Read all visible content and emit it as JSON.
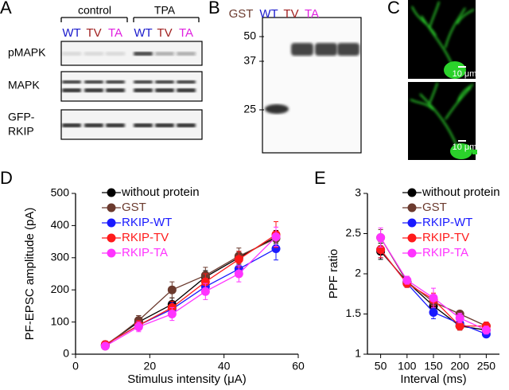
{
  "panel_a": {
    "label": "A",
    "groups": [
      "control",
      "TPA"
    ],
    "lanes": [
      "WT",
      "TV",
      "TA",
      "WT",
      "TV",
      "TA"
    ],
    "rows": [
      "pMAPK",
      "MAPK",
      "GFP-",
      "RKIP"
    ]
  },
  "panel_b": {
    "label": "B",
    "lanes": [
      "GST",
      "WT",
      "TV",
      "TA"
    ],
    "markers": [
      "50",
      "37",
      "25"
    ]
  },
  "panel_c": {
    "label": "C",
    "scale_bars": [
      "10 μm",
      "10 μm"
    ]
  },
  "chart_data": [
    {
      "type": "line",
      "label": "D",
      "ylabel": "PF-EPSC amplitude (pA)",
      "xlabel": "Stimulus intensity (μA)",
      "x": [
        8,
        17,
        26,
        35,
        44,
        54
      ],
      "xlim": [
        0,
        60
      ],
      "xticks": [
        0,
        20,
        40,
        60
      ],
      "ylim": [
        0,
        500
      ],
      "yticks": [
        0,
        100,
        200,
        300,
        400,
        500
      ],
      "series": [
        {
          "name": "without protein",
          "color": "#000000",
          "values": [
            28,
            100,
            155,
            240,
            300,
            365
          ],
          "errors": [
            8,
            20,
            20,
            20,
            20,
            20
          ]
        },
        {
          "name": "GST",
          "color": "#6b3a2e",
          "values": [
            25,
            105,
            200,
            245,
            305,
            360
          ],
          "errors": [
            8,
            15,
            25,
            25,
            25,
            20
          ]
        },
        {
          "name": "RKIP-WT",
          "color": "#1a1aff",
          "values": [
            30,
            90,
            140,
            210,
            265,
            328
          ],
          "errors": [
            8,
            15,
            20,
            25,
            25,
            35
          ]
        },
        {
          "name": "RKIP-TV",
          "color": "#ff1a1a",
          "values": [
            30,
            90,
            145,
            225,
            295,
            372
          ],
          "errors": [
            8,
            15,
            20,
            25,
            25,
            40
          ]
        },
        {
          "name": "RKIP-TA",
          "color": "#ff33ff",
          "values": [
            25,
            85,
            125,
            195,
            250,
            365
          ],
          "errors": [
            8,
            15,
            20,
            25,
            25,
            30
          ]
        }
      ]
    },
    {
      "type": "line",
      "label": "E",
      "ylabel": "PPF ratio",
      "xlabel": "Interval (ms)",
      "x": [
        50,
        100,
        150,
        200,
        250
      ],
      "xlim": [
        25,
        275
      ],
      "xticks": [
        50,
        100,
        150,
        200,
        250
      ],
      "ylim": [
        1,
        3
      ],
      "yticks": [
        1,
        1.5,
        2,
        2.5,
        3
      ],
      "series": [
        {
          "name": "without protein",
          "color": "#000000",
          "values": [
            2.28,
            1.9,
            1.6,
            1.35,
            1.3
          ],
          "errors": [
            0.1,
            0.05,
            0.08,
            0.05,
            0.05
          ]
        },
        {
          "name": "GST",
          "color": "#6b3a2e",
          "values": [
            2.45,
            1.9,
            1.65,
            1.5,
            1.35
          ],
          "errors": [
            0.1,
            0.05,
            0.08,
            0.04,
            0.05
          ]
        },
        {
          "name": "RKIP-WT",
          "color": "#1a1aff",
          "values": [
            2.3,
            1.88,
            1.52,
            1.38,
            1.25
          ],
          "errors": [
            0.1,
            0.05,
            0.08,
            0.05,
            0.04
          ]
        },
        {
          "name": "RKIP-TV",
          "color": "#ff1a1a",
          "values": [
            2.3,
            1.88,
            1.68,
            1.35,
            1.35
          ],
          "errors": [
            0.1,
            0.05,
            0.08,
            0.05,
            0.05
          ]
        },
        {
          "name": "RKIP-TA",
          "color": "#ff33ff",
          "values": [
            2.45,
            1.92,
            1.7,
            1.45,
            1.3
          ],
          "errors": [
            0.12,
            0.05,
            0.12,
            0.06,
            0.05
          ]
        }
      ]
    }
  ]
}
